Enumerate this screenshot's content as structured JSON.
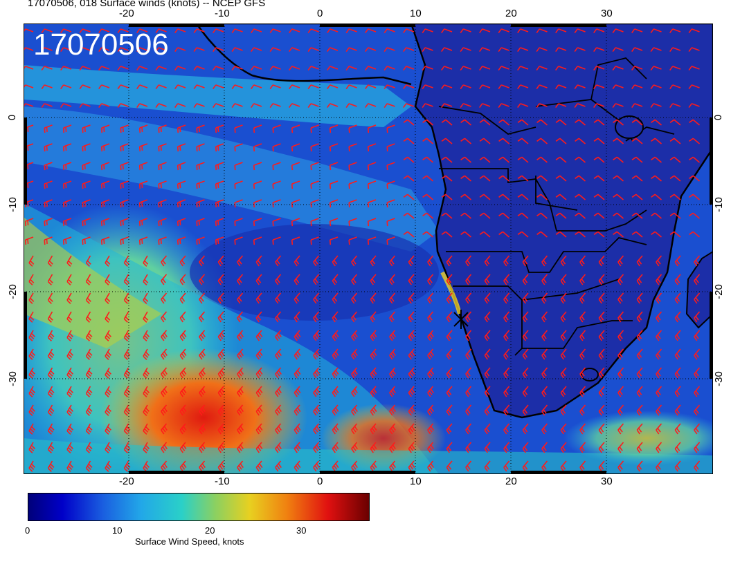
{
  "header": {
    "title": "17070506, 018 Surface winds (knots) -- NCEP GFS",
    "stamp": "17070506"
  },
  "map": {
    "lon_ticks": [
      "-20",
      "-10",
      "0",
      "10",
      "20",
      "30"
    ],
    "lat_ticks": [
      "0",
      "-10",
      "-20",
      "-30"
    ],
    "colors": {
      "barb": "#ff1a1a",
      "coast": "#000000",
      "calm": "#1a3fc8",
      "moderate": "#22c8d0",
      "strong": "#e8c020",
      "gale": "#e82010"
    }
  },
  "colorbar": {
    "ticks": [
      "0",
      "10",
      "20",
      "30"
    ],
    "label": "Surface Wind Speed, knots"
  }
}
